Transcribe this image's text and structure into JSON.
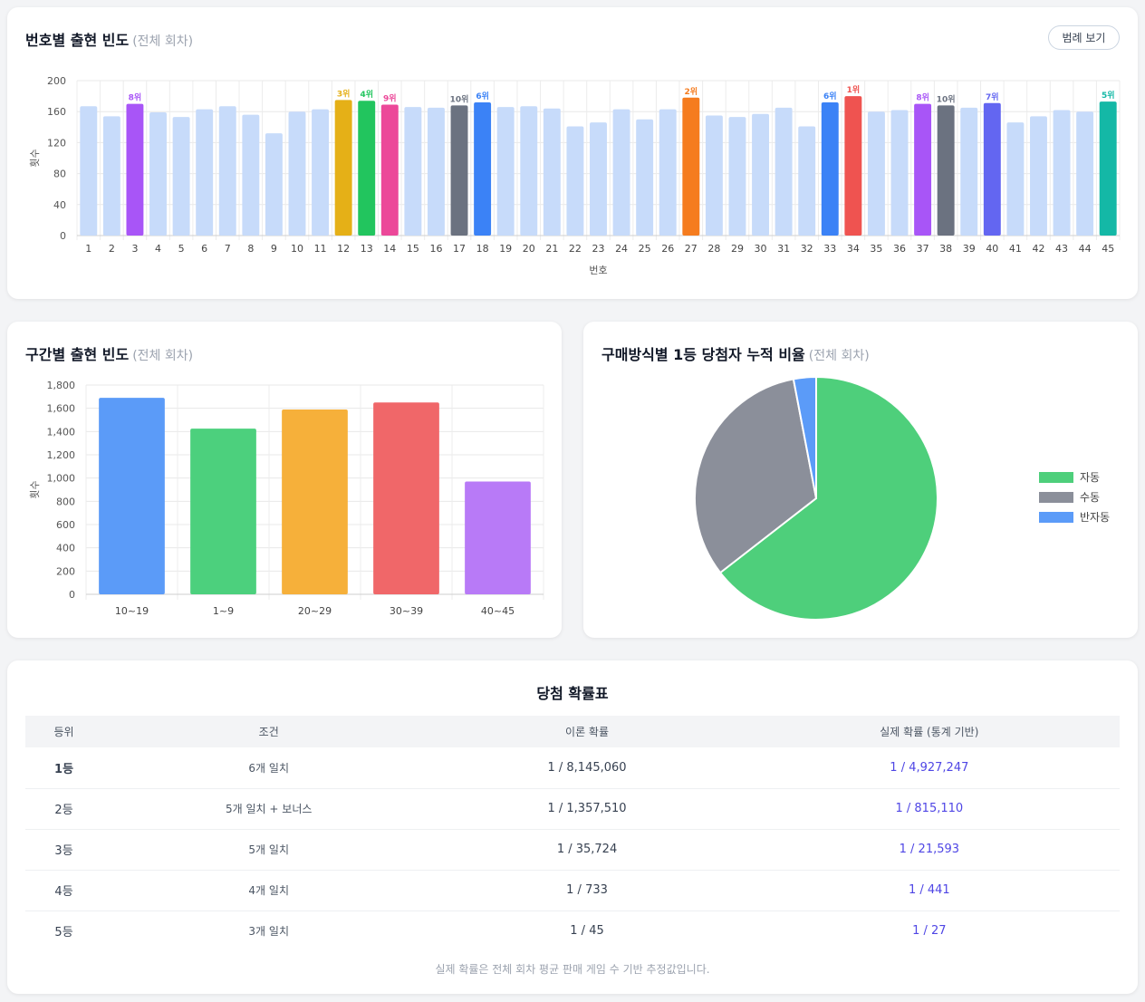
{
  "number_chart": {
    "title": "번호별 출현 빈도",
    "subtitle": "(전체 회차)",
    "legend_button": "범례 보기"
  },
  "range_chart": {
    "title": "구간별 출현 빈도",
    "subtitle": "(전체 회차)"
  },
  "pie_chart": {
    "title": "구매방식별 1등 당첨자 누적 비율",
    "subtitle": "(전체 회차)"
  },
  "probability_table": {
    "title": "당첨 확률표",
    "headers": [
      "등위",
      "조건",
      "이론 확률",
      "실제 확률 (통계 기반)"
    ],
    "rows": [
      {
        "rank": "1등",
        "condition": "6개 일치",
        "theory": "1 / 8,145,060",
        "real": "1 / 4,927,247"
      },
      {
        "rank": "2등",
        "condition": "5개 일치 + 보너스",
        "theory": "1 / 1,357,510",
        "real": "1 / 815,110"
      },
      {
        "rank": "3등",
        "condition": "5개 일치",
        "theory": "1 / 35,724",
        "real": "1 / 21,593"
      },
      {
        "rank": "4등",
        "condition": "4개 일치",
        "theory": "1 / 733",
        "real": "1 / 441"
      },
      {
        "rank": "5등",
        "condition": "3개 일치",
        "theory": "1 / 45",
        "real": "1 / 27"
      }
    ],
    "footnote": "실제 확률은 전체 회차 평균 판매 게임 수 기반 추정값입니다."
  },
  "chart_data": [
    {
      "type": "bar",
      "xlabel": "번호",
      "ylabel": "횟수",
      "ylim": [
        0,
        200
      ],
      "yticks": [
        0,
        40,
        80,
        120,
        160,
        200
      ],
      "categories": [
        "1",
        "2",
        "3",
        "4",
        "5",
        "6",
        "7",
        "8",
        "9",
        "10",
        "11",
        "12",
        "13",
        "14",
        "15",
        "16",
        "17",
        "18",
        "19",
        "20",
        "21",
        "22",
        "23",
        "24",
        "25",
        "26",
        "27",
        "28",
        "29",
        "30",
        "31",
        "32",
        "33",
        "34",
        "35",
        "36",
        "37",
        "38",
        "39",
        "40",
        "41",
        "42",
        "43",
        "44",
        "45"
      ],
      "values": [
        167,
        154,
        170,
        159,
        153,
        163,
        167,
        156,
        132,
        160,
        163,
        175,
        174,
        169,
        166,
        165,
        168,
        172,
        166,
        167,
        164,
        141,
        146,
        163,
        150,
        163,
        178,
        155,
        153,
        157,
        165,
        141,
        172,
        180,
        160,
        162,
        170,
        168,
        165,
        171,
        146,
        154,
        162,
        160,
        173
      ],
      "base_color": "#c7dbfa",
      "highlights": [
        {
          "number": "34",
          "label": "1위",
          "color": "#ef5350"
        },
        {
          "number": "27",
          "label": "2위",
          "color": "#f57c1f"
        },
        {
          "number": "12",
          "label": "3위",
          "color": "#e5b017"
        },
        {
          "number": "13",
          "label": "4위",
          "color": "#22c55e"
        },
        {
          "number": "45",
          "label": "5위",
          "color": "#14b8a6"
        },
        {
          "number": "18",
          "label": "6위",
          "color": "#3b82f6"
        },
        {
          "number": "33",
          "label": "6위",
          "color": "#3b82f6"
        },
        {
          "number": "40",
          "label": "7위",
          "color": "#6366f1"
        },
        {
          "number": "3",
          "label": "8위",
          "color": "#a855f7"
        },
        {
          "number": "37",
          "label": "8위",
          "color": "#a855f7"
        },
        {
          "number": "14",
          "label": "9위",
          "color": "#ec4899"
        },
        {
          "number": "17",
          "label": "10위",
          "color": "#6b7280"
        },
        {
          "number": "38",
          "label": "10위",
          "color": "#6b7280"
        }
      ]
    },
    {
      "type": "bar",
      "ylabel": "횟수",
      "ylim": [
        0,
        1800
      ],
      "yticks": [
        "0",
        "200",
        "400",
        "600",
        "800",
        "1,000",
        "1,200",
        "1,400",
        "1,600",
        "1,800"
      ],
      "categories": [
        "10~19",
        "1~9",
        "20~29",
        "30~39",
        "40~45"
      ],
      "values": [
        1690,
        1425,
        1590,
        1650,
        970
      ],
      "colors": [
        "#5b9bf8",
        "#4cd07d",
        "#f6b03a",
        "#f06769",
        "#b87af7"
      ]
    },
    {
      "type": "pie",
      "labels": [
        "자동",
        "수동",
        "반자동"
      ],
      "values": [
        64.5,
        32.5,
        3.0
      ],
      "colors": [
        "#4ecf7b",
        "#8b8f9a",
        "#5b9bf8"
      ],
      "legend": "right"
    }
  ]
}
